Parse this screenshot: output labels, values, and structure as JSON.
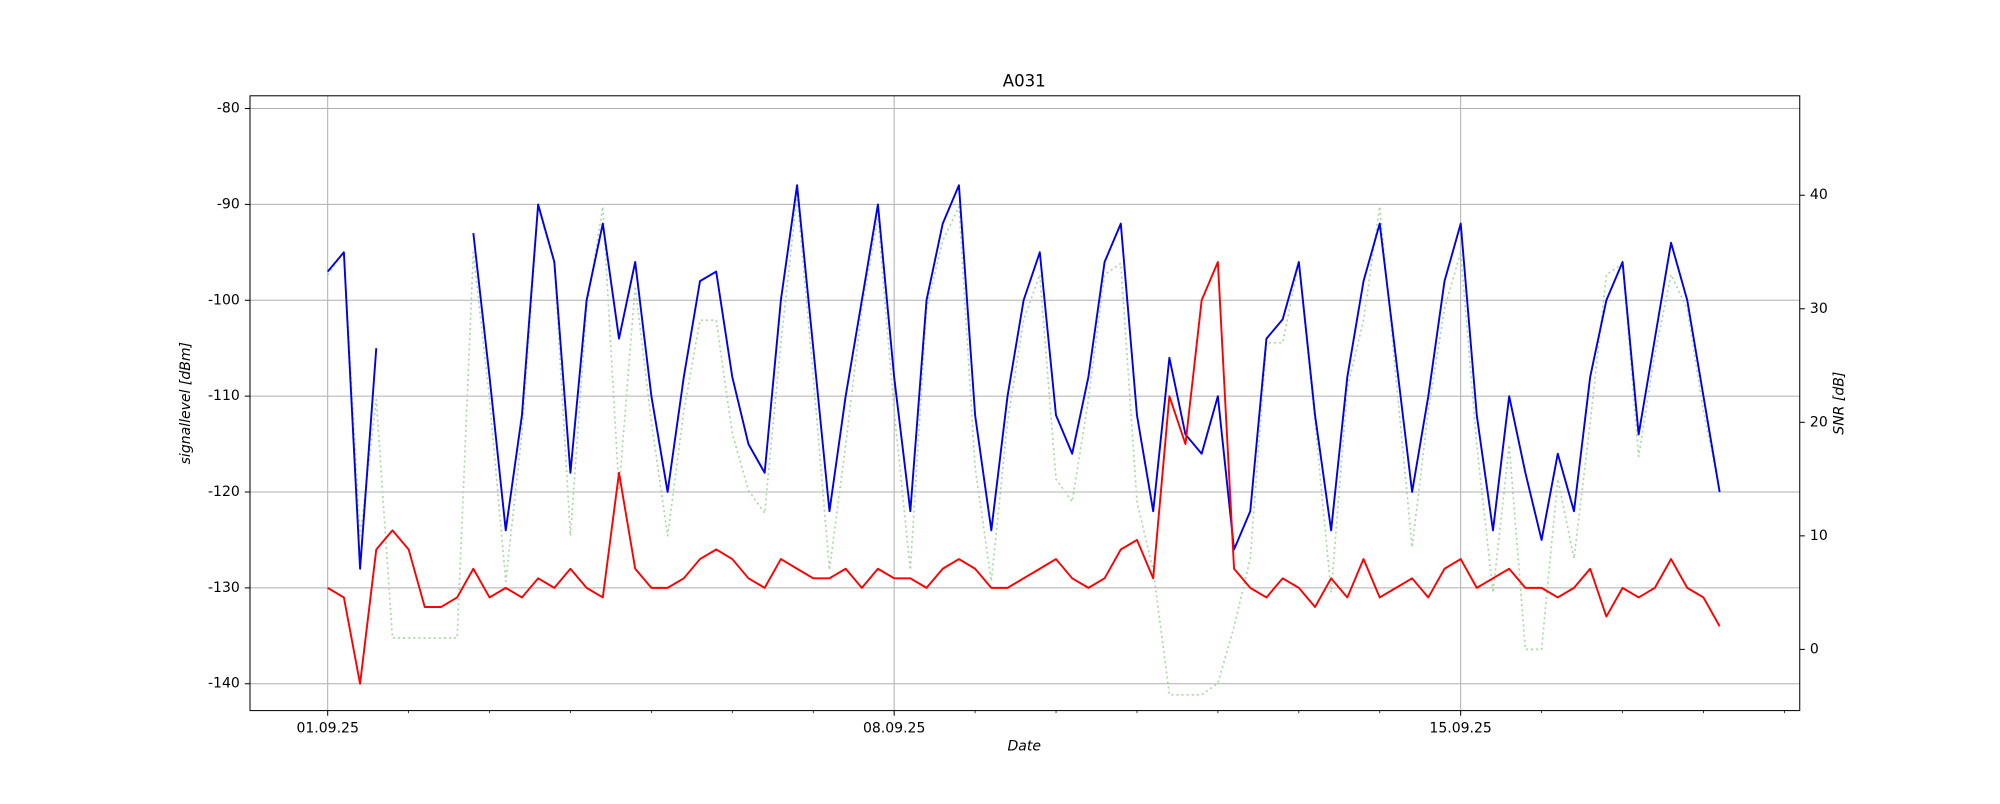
{
  "chart_data": {
    "type": "line",
    "title": "A031",
    "xlabel": "Date",
    "ylabel": "signallevel [dBm]",
    "y2label": "SNR [dB]",
    "x": [
      1.0,
      1.2,
      1.4,
      1.6,
      1.8,
      2.0,
      2.2,
      2.4,
      2.6,
      2.8,
      3.0,
      3.2,
      3.4,
      3.6,
      3.8,
      4.0,
      4.2,
      4.4,
      4.6,
      4.8,
      5.0,
      5.2,
      5.4,
      5.6,
      5.8,
      6.0,
      6.2,
      6.4,
      6.6,
      6.8,
      7.0,
      7.2,
      7.4,
      7.6,
      7.8,
      8.0,
      8.2,
      8.4,
      8.6,
      8.8,
      9.0,
      9.2,
      9.4,
      9.6,
      9.8,
      10.0,
      10.2,
      10.4,
      10.6,
      10.8,
      11.0,
      11.2,
      11.4,
      11.6,
      11.8,
      12.0,
      12.2,
      12.4,
      12.6,
      12.8,
      13.0,
      13.2,
      13.4,
      13.6,
      13.8,
      14.0,
      14.2,
      14.4,
      14.6,
      14.8,
      15.0,
      15.2,
      15.4,
      15.6,
      15.8,
      16.0,
      16.2,
      16.4,
      16.6,
      16.8,
      17.0,
      17.2,
      17.4,
      17.6,
      17.8,
      18.0,
      18.2
    ],
    "series": [
      {
        "color": "#a6d7a0",
        "axis": "y2",
        "dash": true,
        "values": [
          33,
          35,
          10,
          22,
          1,
          1,
          1,
          1,
          1,
          35,
          22,
          6,
          19,
          39,
          34,
          10,
          30,
          39,
          14,
          32,
          20,
          10,
          21,
          29,
          29,
          19,
          14,
          12,
          27,
          40,
          24,
          7,
          18,
          30,
          38,
          21,
          7,
          30,
          36,
          39,
          16,
          6,
          20,
          29,
          33,
          15,
          13,
          22,
          33,
          34,
          13,
          7,
          -4,
          -4,
          -4,
          -3,
          2,
          8,
          27,
          27,
          34,
          20,
          5,
          23,
          29,
          39,
          24,
          9,
          21,
          30,
          35,
          18,
          5,
          18,
          0,
          0,
          15,
          8,
          20,
          33,
          34,
          17,
          26,
          33,
          30,
          21,
          14
        ]
      },
      {
        "color": "#0000ee",
        "values": [
          -97,
          -95,
          -128,
          -105,
          null,
          null,
          null,
          null,
          null,
          -93,
          -108,
          -124,
          -112,
          -90,
          -96,
          -118,
          -100,
          -92,
          -104,
          -96,
          -110,
          -120,
          -108,
          -98,
          -97,
          -108,
          -115,
          -118,
          -100,
          -88,
          -105,
          -122,
          -110,
          -100,
          -90,
          -108,
          -122,
          -100,
          -92,
          -88,
          -112,
          -124,
          -110,
          -100,
          -95,
          -112,
          -116,
          -108,
          -96,
          -92,
          -112,
          -122,
          -106,
          -114,
          -116,
          -110,
          -126,
          -122,
          -104,
          -102,
          -96,
          -112,
          -124,
          -108,
          -98,
          -92,
          -106,
          -120,
          -110,
          -98,
          -92,
          -112,
          -124,
          -110,
          -118,
          -125,
          -116,
          -122,
          -108,
          -100,
          -96,
          -114,
          -104,
          -94,
          -100,
          -110,
          -120
        ]
      },
      {
        "color": "#ff0000",
        "values": [
          -130,
          -131,
          -140,
          -126,
          -124,
          -126,
          -132,
          -132,
          -131,
          -128,
          -131,
          -130,
          -131,
          -129,
          -130,
          -128,
          -130,
          -131,
          -118,
          -128,
          -130,
          -130,
          -129,
          -127,
          -126,
          -127,
          -129,
          -130,
          -127,
          -128,
          -129,
          -129,
          -128,
          -130,
          -128,
          -129,
          -129,
          -130,
          -128,
          -127,
          -128,
          -130,
          -130,
          -129,
          -128,
          -127,
          -129,
          -130,
          -129,
          -126,
          -125,
          -129,
          -110,
          -115,
          -100,
          -96,
          -128,
          -130,
          -131,
          -129,
          -130,
          -132,
          -129,
          -131,
          -127,
          -131,
          -130,
          -129,
          -131,
          -128,
          -127,
          -130,
          -129,
          -128,
          -130,
          -130,
          -131,
          -130,
          -128,
          -133,
          -130,
          -131,
          -130,
          -127,
          -130,
          -131,
          -134
        ]
      }
    ],
    "xlim": [
      0.04,
      19.19
    ],
    "xticks": [
      {
        "value": 1,
        "label": "01.09.25"
      },
      {
        "value": 8,
        "label": "08.09.25"
      },
      {
        "value": 15,
        "label": "15.09.25"
      }
    ],
    "xminorticks": [
      2,
      3,
      4,
      5,
      6,
      7,
      9,
      10,
      11,
      12,
      13,
      14,
      16,
      17,
      18,
      19
    ],
    "ylim": [
      -142.8,
      -78.67
    ],
    "yticks": [
      -140,
      -130,
      -120,
      -110,
      -100,
      -90,
      -80
    ],
    "y2lim": [
      -5.39,
      48.76
    ],
    "y2ticks": [
      0,
      10,
      20,
      30,
      40
    ],
    "grid": true
  }
}
